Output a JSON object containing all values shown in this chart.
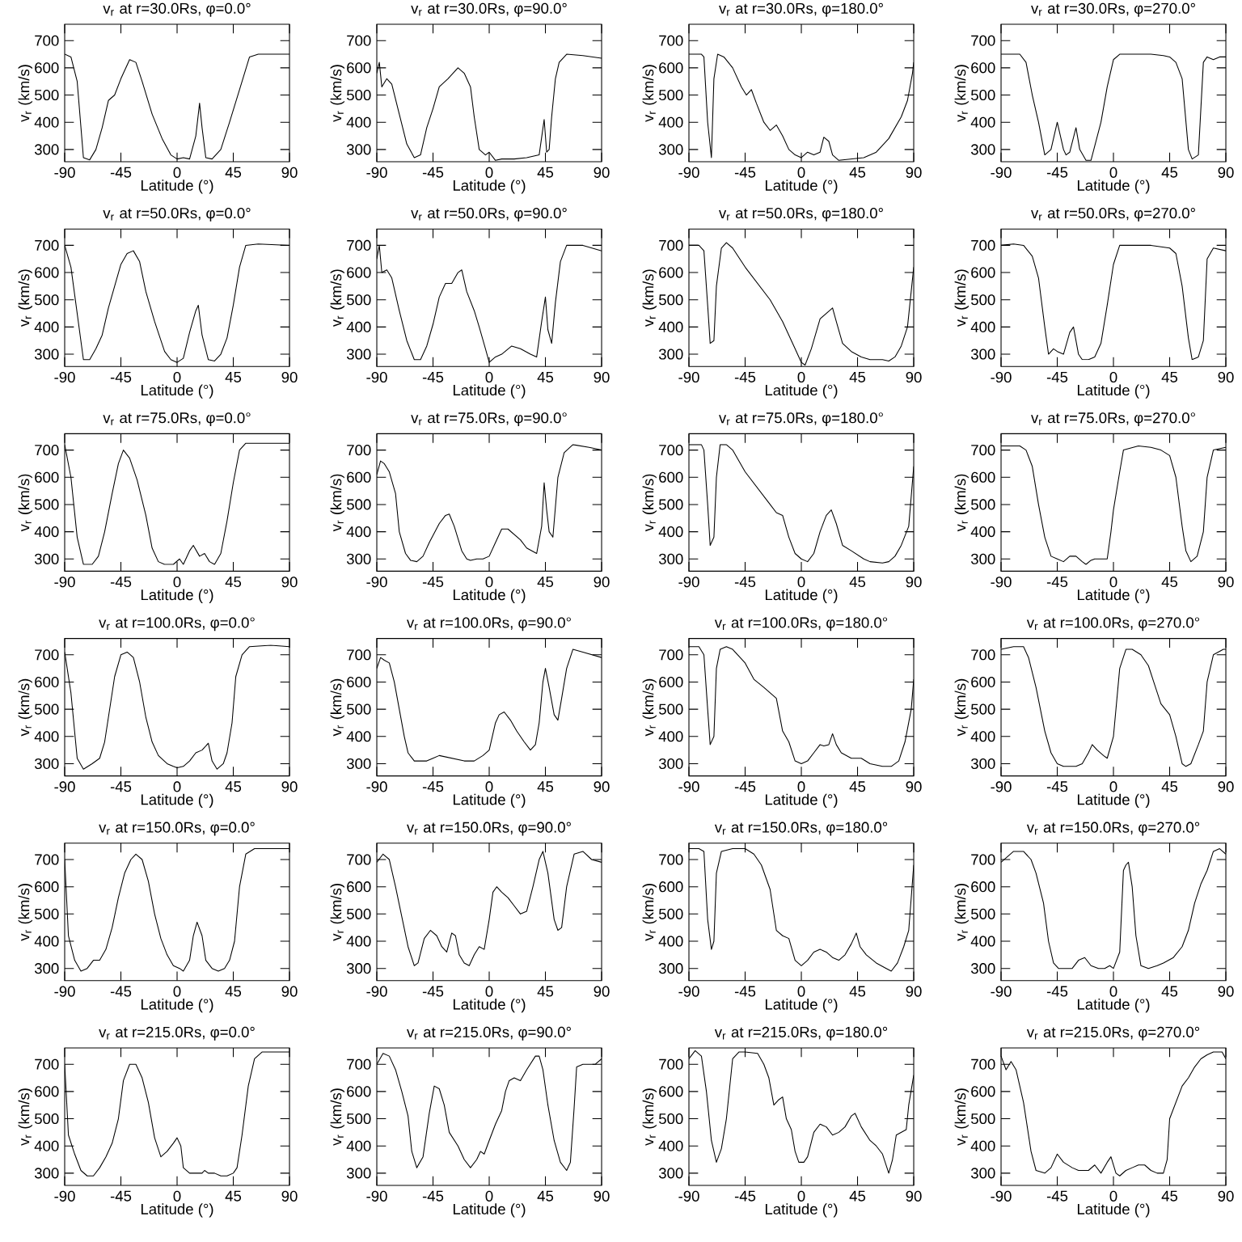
{
  "chart_data": [
    {
      "type": "line",
      "title": "v$_{r}$ at r=30.0Rs, φ=0.0°",
      "xlabel": "Latitude (°)",
      "ylabel": "v$_{r}$ (km/s)",
      "xlim": [
        -90,
        90
      ],
      "ylim": [
        255,
        760
      ],
      "xticks": [
        -90,
        -45,
        0,
        45,
        90
      ],
      "yticks": [
        300,
        400,
        500,
        600,
        700
      ],
      "x": [
        -90,
        -85,
        -80,
        -75,
        -70,
        -65,
        -60,
        -55,
        -50,
        -45,
        -38,
        -33,
        -28,
        -20,
        -12,
        -5,
        0,
        5,
        10,
        15,
        18,
        20,
        23,
        28,
        35,
        42,
        50,
        58,
        65,
        90
      ],
      "series": [
        {
          "color": "#000000",
          "values": [
            650,
            640,
            550,
            270,
            262,
            300,
            380,
            480,
            500,
            560,
            630,
            620,
            550,
            430,
            340,
            280,
            265,
            270,
            265,
            350,
            470,
            380,
            270,
            265,
            300,
            400,
            520,
            640,
            650,
            650
          ]
        }
      ]
    },
    {
      "type": "line",
      "title": "v$_{r}$ at r=30.0Rs, φ=90.0°",
      "xlabel": "Latitude (°)",
      "ylabel": "v$_{r}$ (km/s)",
      "xlim": [
        -90,
        90
      ],
      "ylim": [
        255,
        760
      ],
      "xticks": [
        -90,
        -45,
        0,
        45,
        90
      ],
      "yticks": [
        300,
        400,
        500,
        600,
        700
      ],
      "x": [
        -90,
        -88,
        -86,
        -82,
        -78,
        -72,
        -66,
        -60,
        -55,
        -50,
        -45,
        -40,
        -33,
        -25,
        -20,
        -15,
        -12,
        -8,
        -3,
        0,
        5,
        10,
        20,
        30,
        40,
        44,
        46,
        48,
        50,
        53,
        56,
        62,
        75,
        90
      ],
      "series": [
        {
          "color": "#000000",
          "values": [
            580,
            620,
            530,
            560,
            540,
            430,
            320,
            270,
            280,
            380,
            450,
            530,
            560,
            600,
            580,
            530,
            420,
            300,
            280,
            290,
            260,
            265,
            265,
            270,
            280,
            410,
            290,
            300,
            420,
            560,
            620,
            650,
            645,
            635
          ]
        }
      ]
    },
    {
      "type": "line",
      "title": "v$_{r}$ at r=30.0Rs, φ=180.0°",
      "xlabel": "Latitude (°)",
      "ylabel": "v$_{r}$ (km/s)",
      "xlim": [
        -90,
        90
      ],
      "ylim": [
        255,
        760
      ],
      "xticks": [
        -90,
        -45,
        0,
        45,
        90
      ],
      "yticks": [
        300,
        400,
        500,
        600,
        700
      ],
      "x": [
        -90,
        -80,
        -78,
        -75,
        -72,
        -70,
        -67,
        -62,
        -55,
        -48,
        -44,
        -40,
        -36,
        -30,
        -25,
        -20,
        -15,
        -10,
        -5,
        0,
        5,
        10,
        15,
        18,
        22,
        25,
        30,
        50,
        60,
        70,
        80,
        85,
        89,
        90
      ],
      "series": [
        {
          "color": "#000000",
          "values": [
            650,
            650,
            640,
            400,
            270,
            560,
            650,
            640,
            600,
            530,
            500,
            520,
            470,
            400,
            370,
            390,
            350,
            300,
            280,
            270,
            290,
            280,
            290,
            345,
            330,
            280,
            260,
            270,
            290,
            340,
            420,
            480,
            580,
            620
          ]
        }
      ]
    },
    {
      "type": "line",
      "title": "v$_{r}$ at r=30.0Rs, φ=270.0°",
      "xlabel": "Latitude (°)",
      "ylabel": "v$_{r}$ (km/s)",
      "xlim": [
        -90,
        90
      ],
      "ylim": [
        255,
        760
      ],
      "xticks": [
        -90,
        -45,
        0,
        45,
        90
      ],
      "yticks": [
        300,
        400,
        500,
        600,
        700
      ],
      "x": [
        -90,
        -75,
        -70,
        -65,
        -60,
        -55,
        -50,
        -45,
        -40,
        -38,
        -35,
        -30,
        -27,
        -22,
        -18,
        -10,
        -5,
        0,
        5,
        30,
        40,
        45,
        50,
        55,
        60,
        63,
        68,
        72,
        75,
        80,
        85,
        90
      ],
      "series": [
        {
          "color": "#000000",
          "values": [
            650,
            650,
            620,
            500,
            400,
            280,
            300,
            400,
            300,
            280,
            290,
            380,
            300,
            260,
            260,
            400,
            530,
            630,
            650,
            650,
            645,
            640,
            620,
            560,
            300,
            265,
            280,
            620,
            640,
            630,
            640,
            640
          ]
        }
      ]
    },
    {
      "type": "line",
      "title": "v$_{r}$ at r=50.0Rs, φ=0.0°",
      "xlabel": "Latitude (°)",
      "ylabel": "v$_{r}$ (km/s)",
      "xlim": [
        -90,
        90
      ],
      "ylim": [
        255,
        760
      ],
      "xticks": [
        -90,
        -45,
        0,
        45,
        90
      ],
      "yticks": [
        300,
        400,
        500,
        600,
        700
      ],
      "x": [
        -90,
        -85,
        -80,
        -75,
        -70,
        -65,
        -60,
        -55,
        -50,
        -45,
        -40,
        -35,
        -30,
        -25,
        -18,
        -10,
        -5,
        0,
        5,
        10,
        15,
        17,
        20,
        25,
        30,
        35,
        40,
        45,
        50,
        55,
        65,
        90
      ],
      "series": [
        {
          "color": "#000000",
          "values": [
            700,
            620,
            450,
            280,
            280,
            320,
            370,
            470,
            550,
            630,
            670,
            680,
            640,
            530,
            420,
            310,
            280,
            270,
            285,
            380,
            460,
            480,
            370,
            280,
            275,
            300,
            360,
            480,
            620,
            700,
            705,
            700
          ]
        }
      ]
    },
    {
      "type": "line",
      "title": "v$_{r}$ at r=50.0Rs, φ=90.0°",
      "xlabel": "Latitude (°)",
      "ylabel": "v$_{r}$ (km/s)",
      "xlim": [
        -90,
        90
      ],
      "ylim": [
        255,
        760
      ],
      "xticks": [
        -90,
        -45,
        0,
        45,
        90
      ],
      "yticks": [
        300,
        400,
        500,
        600,
        700
      ],
      "x": [
        -90,
        -88,
        -86,
        -82,
        -78,
        -72,
        -66,
        -60,
        -55,
        -50,
        -45,
        -40,
        -35,
        -30,
        -25,
        -22,
        -18,
        -12,
        -8,
        -3,
        0,
        5,
        10,
        18,
        25,
        33,
        38,
        42,
        45,
        47,
        50,
        53,
        57,
        62,
        75,
        90
      ],
      "series": [
        {
          "color": "#000000",
          "values": [
            650,
            700,
            600,
            610,
            580,
            460,
            350,
            280,
            280,
            330,
            410,
            510,
            560,
            560,
            600,
            610,
            530,
            460,
            400,
            320,
            270,
            290,
            300,
            330,
            320,
            300,
            290,
            420,
            510,
            390,
            340,
            490,
            640,
            700,
            700,
            680
          ]
        }
      ]
    },
    {
      "type": "line",
      "title": "v$_{r}$ at r=50.0Rs, φ=180.0°",
      "xlabel": "Latitude (°)",
      "ylabel": "v$_{r}$ (km/s)",
      "xlim": [
        -90,
        90
      ],
      "ylim": [
        255,
        760
      ],
      "xticks": [
        -90,
        -45,
        0,
        45,
        90
      ],
      "yticks": [
        300,
        400,
        500,
        600,
        700
      ],
      "x": [
        -90,
        -82,
        -78,
        -75,
        -73,
        -70,
        -68,
        -64,
        -60,
        -55,
        -45,
        -35,
        -25,
        -15,
        -10,
        -5,
        0,
        3,
        8,
        15,
        20,
        25,
        28,
        33,
        40,
        48,
        55,
        65,
        70,
        75,
        80,
        85,
        90
      ],
      "series": [
        {
          "color": "#000000",
          "values": [
            700,
            700,
            680,
            480,
            340,
            350,
            550,
            690,
            710,
            690,
            620,
            560,
            500,
            420,
            370,
            320,
            270,
            260,
            320,
            430,
            450,
            470,
            420,
            340,
            310,
            290,
            280,
            280,
            275,
            290,
            330,
            400,
            620
          ]
        }
      ]
    },
    {
      "type": "line",
      "title": "v$_{r}$ at r=50.0Rs, φ=270.0°",
      "xlabel": "Latitude (°)",
      "ylabel": "v$_{r}$ (km/s)",
      "xlim": [
        -90,
        90
      ],
      "ylim": [
        255,
        760
      ],
      "xticks": [
        -90,
        -45,
        0,
        45,
        90
      ],
      "yticks": [
        300,
        400,
        500,
        600,
        700
      ],
      "x": [
        -90,
        -80,
        -72,
        -65,
        -60,
        -55,
        -52,
        -48,
        -45,
        -40,
        -35,
        -32,
        -28,
        -25,
        -20,
        -15,
        -10,
        -5,
        0,
        5,
        30,
        45,
        50,
        55,
        60,
        63,
        68,
        72,
        75,
        80,
        90
      ],
      "series": [
        {
          "color": "#000000",
          "values": [
            700,
            705,
            700,
            660,
            580,
            400,
            300,
            320,
            310,
            300,
            380,
            400,
            300,
            280,
            280,
            290,
            340,
            480,
            630,
            700,
            700,
            690,
            670,
            550,
            360,
            280,
            290,
            350,
            650,
            690,
            680
          ]
        }
      ]
    },
    {
      "type": "line",
      "title": "v$_{r}$ at r=75.0Rs, φ=0.0°",
      "xlabel": "Latitude (°)",
      "ylabel": "v$_{r}$ (km/s)",
      "xlim": [
        -90,
        90
      ],
      "ylim": [
        255,
        760
      ],
      "xticks": [
        -90,
        -45,
        0,
        45,
        90
      ],
      "yticks": [
        300,
        400,
        500,
        600,
        700
      ],
      "x": [
        -90,
        -85,
        -80,
        -75,
        -68,
        -63,
        -58,
        -52,
        -47,
        -43,
        -38,
        -32,
        -25,
        -20,
        -15,
        -10,
        -3,
        2,
        5,
        10,
        13,
        18,
        22,
        26,
        30,
        35,
        40,
        45,
        50,
        55,
        90
      ],
      "series": [
        {
          "color": "#000000",
          "values": [
            720,
            600,
            380,
            280,
            280,
            310,
            400,
            540,
            650,
            700,
            670,
            590,
            460,
            340,
            290,
            280,
            280,
            300,
            280,
            330,
            350,
            310,
            320,
            290,
            280,
            320,
            440,
            580,
            700,
            725,
            725
          ]
        }
      ]
    },
    {
      "type": "line",
      "title": "v$_{r}$ at r=75.0Rs, φ=90.0°",
      "xlabel": "Latitude (°)",
      "ylabel": "v$_{r}$ (km/s)",
      "xlim": [
        -90,
        90
      ],
      "ylim": [
        255,
        760
      ],
      "xticks": [
        -90,
        -45,
        0,
        45,
        90
      ],
      "yticks": [
        300,
        400,
        500,
        600,
        700
      ],
      "x": [
        -90,
        -87,
        -84,
        -80,
        -75,
        -72,
        -67,
        -63,
        -58,
        -53,
        -48,
        -40,
        -35,
        -32,
        -28,
        -22,
        -18,
        -15,
        -10,
        -5,
        0,
        5,
        10,
        15,
        25,
        30,
        38,
        42,
        44,
        46,
        48,
        51,
        55,
        60,
        67,
        80,
        90
      ],
      "series": [
        {
          "color": "#000000",
          "values": [
            610,
            660,
            650,
            620,
            540,
            400,
            320,
            295,
            290,
            310,
            360,
            430,
            460,
            465,
            420,
            330,
            300,
            295,
            300,
            300,
            310,
            360,
            410,
            410,
            370,
            340,
            320,
            420,
            580,
            480,
            400,
            380,
            600,
            690,
            720,
            710,
            700
          ]
        }
      ]
    },
    {
      "type": "line",
      "title": "v$_{r}$ at r=75.0Rs, φ=180.0°",
      "xlabel": "Latitude (°)",
      "ylabel": "v$_{r}$ (km/s)",
      "xlim": [
        -90,
        90
      ],
      "ylim": [
        255,
        760
      ],
      "xticks": [
        -90,
        -45,
        0,
        45,
        90
      ],
      "yticks": [
        300,
        400,
        500,
        600,
        700
      ],
      "x": [
        -90,
        -80,
        -78,
        -75,
        -73,
        -70,
        -68,
        -65,
        -60,
        -55,
        -45,
        -35,
        -25,
        -20,
        -15,
        -10,
        -5,
        0,
        5,
        10,
        15,
        20,
        24,
        28,
        33,
        40,
        50,
        55,
        65,
        70,
        75,
        80,
        86,
        90
      ],
      "series": [
        {
          "color": "#000000",
          "values": [
            720,
            720,
            700,
            500,
            350,
            380,
            600,
            720,
            720,
            700,
            620,
            560,
            500,
            470,
            460,
            380,
            320,
            300,
            290,
            320,
            400,
            460,
            480,
            430,
            350,
            330,
            300,
            290,
            285,
            290,
            310,
            350,
            420,
            640
          ]
        }
      ]
    },
    {
      "type": "line",
      "title": "v$_{r}$ at r=75.0Rs, φ=270.0°",
      "xlabel": "Latitude (°)",
      "ylabel": "v$_{r}$ (km/s)",
      "xlim": [
        -90,
        90
      ],
      "ylim": [
        255,
        760
      ],
      "xticks": [
        -90,
        -45,
        0,
        45,
        90
      ],
      "yticks": [
        300,
        400,
        500,
        600,
        700
      ],
      "x": [
        -90,
        -75,
        -70,
        -65,
        -60,
        -55,
        -50,
        -45,
        -40,
        -35,
        -30,
        -25,
        -22,
        -18,
        -15,
        -10,
        -5,
        -2,
        0,
        5,
        8,
        20,
        30,
        38,
        45,
        50,
        55,
        58,
        62,
        67,
        72,
        75,
        80,
        90
      ],
      "series": [
        {
          "color": "#000000",
          "values": [
            715,
            715,
            700,
            640,
            500,
            380,
            310,
            300,
            290,
            310,
            310,
            290,
            280,
            295,
            300,
            300,
            300,
            400,
            480,
            620,
            700,
            715,
            710,
            700,
            680,
            600,
            420,
            330,
            290,
            310,
            400,
            600,
            700,
            710
          ]
        }
      ]
    },
    {
      "type": "line",
      "title": "v$_{r}$ at r=100.0Rs, φ=0.0°",
      "xlabel": "Latitude (°)",
      "ylabel": "v$_{r}$ (km/s)",
      "xlim": [
        -90,
        90
      ],
      "ylim": [
        255,
        760
      ],
      "xticks": [
        -90,
        -45,
        0,
        45,
        90
      ],
      "yticks": [
        300,
        400,
        500,
        600,
        700
      ],
      "x": [
        -90,
        -85,
        -80,
        -75,
        -68,
        -62,
        -58,
        -54,
        -50,
        -45,
        -40,
        -35,
        -30,
        -25,
        -20,
        -15,
        -8,
        -3,
        0,
        5,
        10,
        15,
        20,
        25,
        28,
        32,
        37,
        40,
        44,
        47,
        52,
        58,
        75,
        90
      ],
      "series": [
        {
          "color": "#000000",
          "values": [
            710,
            560,
            320,
            280,
            300,
            320,
            380,
            500,
            620,
            700,
            710,
            690,
            600,
            470,
            380,
            330,
            300,
            290,
            285,
            290,
            310,
            340,
            350,
            375,
            310,
            280,
            300,
            340,
            450,
            620,
            700,
            730,
            735,
            730
          ]
        }
      ]
    },
    {
      "type": "line",
      "title": "v$_{r}$ at r=100.0Rs, φ=90.0°",
      "xlabel": "Latitude (°)",
      "ylabel": "v$_{r}$ (km/s)",
      "xlim": [
        -90,
        90
      ],
      "ylim": [
        255,
        760
      ],
      "xticks": [
        -90,
        -45,
        0,
        45,
        90
      ],
      "yticks": [
        300,
        400,
        500,
        600,
        700
      ],
      "x": [
        -90,
        -87,
        -84,
        -80,
        -76,
        -72,
        -68,
        -65,
        -60,
        -50,
        -45,
        -40,
        -30,
        -20,
        -12,
        -5,
        0,
        5,
        8,
        12,
        17,
        22,
        28,
        33,
        37,
        40,
        43,
        45,
        48,
        52,
        55,
        58,
        62,
        67,
        75,
        90
      ],
      "series": [
        {
          "color": "#000000",
          "values": [
            650,
            690,
            680,
            670,
            600,
            500,
            400,
            340,
            310,
            310,
            320,
            330,
            320,
            310,
            310,
            330,
            350,
            450,
            480,
            490,
            460,
            420,
            380,
            350,
            370,
            450,
            600,
            650,
            580,
            480,
            460,
            540,
            650,
            720,
            710,
            690
          ]
        }
      ]
    },
    {
      "type": "line",
      "title": "v$_{r}$ at r=100.0Rs, φ=180.0°",
      "xlabel": "Latitude (°)",
      "ylabel": "v$_{r}$ (km/s)",
      "xlim": [
        -90,
        90
      ],
      "ylim": [
        255,
        760
      ],
      "xticks": [
        -90,
        -45,
        0,
        45,
        90
      ],
      "yticks": [
        300,
        400,
        500,
        600,
        700
      ],
      "x": [
        -90,
        -82,
        -78,
        -75,
        -73,
        -70,
        -68,
        -65,
        -60,
        -55,
        -45,
        -38,
        -30,
        -25,
        -20,
        -15,
        -10,
        -5,
        0,
        5,
        10,
        15,
        18,
        22,
        25,
        28,
        32,
        40,
        48,
        55,
        65,
        72,
        78,
        83,
        88,
        90
      ],
      "series": [
        {
          "color": "#000000",
          "values": [
            730,
            730,
            700,
            500,
            370,
            400,
            650,
            720,
            730,
            720,
            670,
            610,
            580,
            560,
            540,
            420,
            380,
            310,
            300,
            310,
            340,
            370,
            365,
            370,
            410,
            370,
            340,
            320,
            320,
            300,
            290,
            290,
            310,
            380,
            500,
            610
          ]
        }
      ]
    },
    {
      "type": "line",
      "title": "v$_{r}$ at r=100.0Rs, φ=270.0°",
      "xlabel": "Latitude (°)",
      "ylabel": "v$_{r}$ (km/s)",
      "xlim": [
        -90,
        90
      ],
      "ylim": [
        255,
        760
      ],
      "xticks": [
        -90,
        -45,
        0,
        45,
        90
      ],
      "yticks": [
        300,
        400,
        500,
        600,
        700
      ],
      "x": [
        -90,
        -80,
        -72,
        -68,
        -62,
        -55,
        -50,
        -45,
        -40,
        -30,
        -25,
        -20,
        -17,
        -13,
        -8,
        -5,
        0,
        5,
        10,
        15,
        22,
        28,
        33,
        38,
        45,
        50,
        55,
        58,
        62,
        68,
        72,
        75,
        80,
        88,
        90
      ],
      "series": [
        {
          "color": "#000000",
          "values": [
            720,
            730,
            730,
            690,
            580,
            420,
            340,
            300,
            290,
            290,
            300,
            340,
            370,
            350,
            330,
            320,
            400,
            650,
            720,
            720,
            700,
            660,
            590,
            520,
            480,
            400,
            300,
            290,
            300,
            370,
            420,
            600,
            700,
            720,
            720
          ]
        }
      ]
    },
    {
      "type": "line",
      "title": "v$_{r}$ at r=150.0Rs, φ=0.0°",
      "xlabel": "Latitude (°)",
      "ylabel": "v$_{r}$ (km/s)",
      "xlim": [
        -90,
        90
      ],
      "ylim": [
        255,
        760
      ],
      "xticks": [
        -90,
        -45,
        0,
        45,
        90
      ],
      "yticks": [
        300,
        400,
        500,
        600,
        700
      ],
      "x": [
        -90,
        -87,
        -82,
        -77,
        -72,
        -67,
        -62,
        -57,
        -52,
        -47,
        -42,
        -37,
        -33,
        -28,
        -23,
        -18,
        -13,
        -8,
        -3,
        2,
        5,
        10,
        13,
        16,
        20,
        23,
        28,
        33,
        38,
        42,
        46,
        50,
        55,
        62,
        90
      ],
      "series": [
        {
          "color": "#000000",
          "values": [
            700,
            420,
            330,
            290,
            300,
            330,
            330,
            370,
            450,
            560,
            650,
            700,
            720,
            700,
            620,
            500,
            410,
            350,
            310,
            300,
            290,
            330,
            420,
            470,
            420,
            330,
            300,
            290,
            300,
            330,
            400,
            600,
            720,
            740,
            740
          ]
        }
      ]
    },
    {
      "type": "line",
      "title": "v$_{r}$ at r=150.0Rs, φ=90.0°",
      "xlabel": "Latitude (°)",
      "ylabel": "v$_{r}$ (km/s)",
      "xlim": [
        -90,
        90
      ],
      "ylim": [
        255,
        760
      ],
      "xticks": [
        -90,
        -45,
        0,
        45,
        90
      ],
      "yticks": [
        300,
        400,
        500,
        600,
        700
      ],
      "x": [
        -90,
        -85,
        -80,
        -75,
        -70,
        -65,
        -60,
        -57,
        -52,
        -47,
        -42,
        -38,
        -34,
        -30,
        -27,
        -24,
        -20,
        -16,
        -12,
        -8,
        -4,
        0,
        3,
        6,
        10,
        15,
        20,
        25,
        30,
        35,
        40,
        43,
        47,
        52,
        55,
        58,
        62,
        68,
        75,
        82,
        90
      ],
      "series": [
        {
          "color": "#000000",
          "values": [
            690,
            720,
            700,
            600,
            490,
            380,
            310,
            320,
            410,
            440,
            420,
            380,
            360,
            430,
            420,
            350,
            320,
            310,
            350,
            380,
            370,
            480,
            580,
            600,
            580,
            560,
            530,
            500,
            510,
            600,
            700,
            730,
            650,
            480,
            440,
            450,
            600,
            720,
            730,
            700,
            690
          ]
        }
      ]
    },
    {
      "type": "line",
      "title": "v$_{r}$ at r=150.0Rs, φ=180.0°",
      "xlabel": "Latitude (°)",
      "ylabel": "v$_{r}$ (km/s)",
      "xlim": [
        -90,
        90
      ],
      "ylim": [
        255,
        760
      ],
      "xticks": [
        -90,
        -45,
        0,
        45,
        90
      ],
      "yticks": [
        300,
        400,
        500,
        600,
        700
      ],
      "x": [
        -90,
        -82,
        -78,
        -75,
        -72,
        -70,
        -68,
        -64,
        -55,
        -45,
        -38,
        -32,
        -25,
        -20,
        -15,
        -10,
        -5,
        0,
        5,
        10,
        15,
        20,
        25,
        30,
        35,
        40,
        44,
        47,
        52,
        60,
        68,
        72,
        77,
        82,
        86,
        90
      ],
      "series": [
        {
          "color": "#000000",
          "values": [
            740,
            740,
            730,
            480,
            370,
            400,
            650,
            730,
            740,
            740,
            720,
            680,
            590,
            440,
            420,
            410,
            330,
            310,
            330,
            360,
            370,
            360,
            340,
            330,
            350,
            390,
            430,
            380,
            350,
            320,
            300,
            290,
            320,
            380,
            440,
            680
          ]
        }
      ]
    },
    {
      "type": "line",
      "title": "v$_{r}$ at r=150.0Rs, φ=270.0°",
      "xlabel": "Latitude (°)",
      "ylabel": "v$_{r}$ (km/s)",
      "xlim": [
        -90,
        90
      ],
      "ylim": [
        255,
        760
      ],
      "xticks": [
        -90,
        -45,
        0,
        45,
        90
      ],
      "yticks": [
        300,
        400,
        500,
        600,
        700
      ],
      "x": [
        -90,
        -85,
        -80,
        -72,
        -66,
        -62,
        -56,
        -52,
        -48,
        -44,
        -38,
        -33,
        -28,
        -23,
        -18,
        -12,
        -7,
        -3,
        0,
        5,
        8,
        10,
        12,
        15,
        18,
        22,
        28,
        35,
        40,
        48,
        55,
        60,
        65,
        70,
        75,
        80,
        85,
        90
      ],
      "series": [
        {
          "color": "#000000",
          "values": [
            690,
            710,
            730,
            730,
            700,
            650,
            540,
            400,
            320,
            300,
            300,
            300,
            330,
            340,
            310,
            300,
            300,
            310,
            300,
            360,
            660,
            680,
            690,
            600,
            420,
            310,
            300,
            310,
            320,
            340,
            380,
            440,
            540,
            610,
            660,
            730,
            740,
            720
          ]
        }
      ]
    },
    {
      "type": "line",
      "title": "v$_{r}$ at r=215.0Rs, φ=0.0°",
      "xlabel": "Latitude (°)",
      "ylabel": "v$_{r}$ (km/s)",
      "xlim": [
        -90,
        90
      ],
      "ylim": [
        255,
        760
      ],
      "xticks": [
        -90,
        -45,
        0,
        45,
        90
      ],
      "yticks": [
        300,
        400,
        500,
        600,
        700
      ],
      "x": [
        -90,
        -87,
        -82,
        -77,
        -72,
        -67,
        -62,
        -57,
        -52,
        -47,
        -43,
        -38,
        -33,
        -28,
        -23,
        -18,
        -13,
        -8,
        -3,
        0,
        3,
        5,
        10,
        15,
        20,
        22,
        25,
        30,
        35,
        40,
        45,
        48,
        52,
        57,
        62,
        68,
        90
      ],
      "series": [
        {
          "color": "#000000",
          "values": [
            700,
            440,
            370,
            310,
            290,
            290,
            320,
            360,
            410,
            500,
            640,
            700,
            700,
            650,
            560,
            430,
            360,
            380,
            410,
            430,
            400,
            320,
            300,
            300,
            300,
            310,
            300,
            300,
            290,
            290,
            300,
            320,
            440,
            620,
            720,
            745,
            745
          ]
        }
      ]
    },
    {
      "type": "line",
      "title": "v$_{r}$ at r=215.0Rs, φ=90.0°",
      "xlabel": "Latitude (°)",
      "ylabel": "v$_{r}$ (km/s)",
      "xlim": [
        -90,
        90
      ],
      "ylim": [
        255,
        760
      ],
      "xticks": [
        -90,
        -45,
        0,
        45,
        90
      ],
      "yticks": [
        300,
        400,
        500,
        600,
        700
      ],
      "x": [
        -90,
        -85,
        -80,
        -75,
        -70,
        -65,
        -62,
        -58,
        -53,
        -48,
        -44,
        -40,
        -36,
        -32,
        -25,
        -20,
        -15,
        -10,
        -7,
        -4,
        0,
        5,
        10,
        13,
        16,
        20,
        25,
        30,
        37,
        40,
        43,
        47,
        52,
        57,
        62,
        65,
        68,
        70,
        75,
        85,
        90
      ],
      "series": [
        {
          "color": "#000000",
          "values": [
            700,
            740,
            730,
            680,
            600,
            510,
            380,
            320,
            360,
            520,
            620,
            610,
            550,
            450,
            400,
            350,
            320,
            350,
            380,
            370,
            420,
            480,
            530,
            600,
            640,
            650,
            640,
            680,
            730,
            730,
            680,
            550,
            420,
            340,
            310,
            340,
            540,
            690,
            700,
            700,
            720
          ]
        }
      ]
    },
    {
      "type": "line",
      "title": "v$_{r}$ at r=215.0Rs, φ=180.0°",
      "xlabel": "Latitude (°)",
      "ylabel": "v$_{r}$ (km/s)",
      "xlim": [
        -90,
        90
      ],
      "ylim": [
        255,
        760
      ],
      "xticks": [
        -90,
        -45,
        0,
        45,
        90
      ],
      "yticks": [
        300,
        400,
        500,
        600,
        700
      ],
      "x": [
        -90,
        -85,
        -80,
        -76,
        -72,
        -68,
        -64,
        -60,
        -55,
        -50,
        -45,
        -35,
        -30,
        -26,
        -22,
        -18,
        -15,
        -12,
        -8,
        -5,
        -2,
        2,
        5,
        10,
        15,
        20,
        25,
        30,
        35,
        40,
        43,
        48,
        55,
        60,
        65,
        70,
        73,
        76,
        80,
        84,
        86,
        90
      ],
      "series": [
        {
          "color": "#000000",
          "values": [
            720,
            750,
            730,
            600,
            420,
            340,
            390,
            500,
            720,
            745,
            745,
            740,
            700,
            650,
            550,
            570,
            580,
            500,
            460,
            380,
            340,
            340,
            360,
            450,
            480,
            470,
            440,
            450,
            470,
            510,
            520,
            470,
            420,
            400,
            370,
            300,
            350,
            440,
            450,
            460,
            550,
            660
          ]
        }
      ]
    },
    {
      "type": "line",
      "title": "v$_{r}$ at r=215.0Rs, φ=270.0°",
      "xlabel": "Latitude (°)",
      "ylabel": "v$_{r}$ (km/s)",
      "xlim": [
        -90,
        90
      ],
      "ylim": [
        255,
        760
      ],
      "xticks": [
        -90,
        -45,
        0,
        45,
        90
      ],
      "yticks": [
        300,
        400,
        500,
        600,
        700
      ],
      "x": [
        -90,
        -86,
        -82,
        -78,
        -72,
        -66,
        -62,
        -55,
        -50,
        -45,
        -40,
        -33,
        -28,
        -20,
        -15,
        -10,
        -5,
        -2,
        2,
        5,
        10,
        15,
        20,
        25,
        30,
        35,
        40,
        43,
        45,
        50,
        55,
        60,
        65,
        70,
        75,
        80,
        87,
        90
      ],
      "series": [
        {
          "color": "#000000",
          "values": [
            730,
            680,
            710,
            680,
            560,
            380,
            310,
            300,
            320,
            370,
            340,
            320,
            310,
            310,
            330,
            300,
            340,
            360,
            300,
            290,
            310,
            320,
            330,
            330,
            310,
            300,
            300,
            350,
            500,
            560,
            620,
            650,
            690,
            720,
            735,
            745,
            745,
            720
          ]
        }
      ]
    }
  ]
}
